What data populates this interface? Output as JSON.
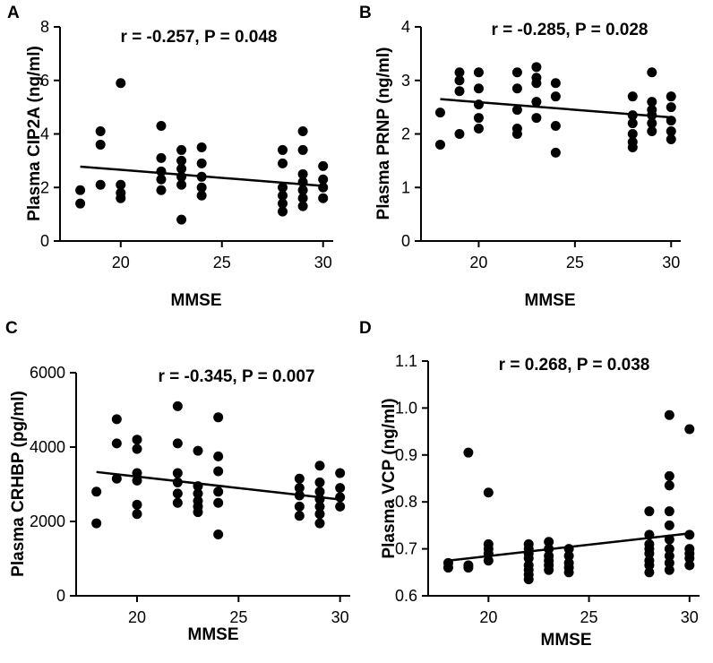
{
  "chart_data": [
    {
      "id": "A",
      "type": "scatter",
      "panel_label": "A",
      "ylabel": "Plasma CIP2A (ng/ml)",
      "xlabel": "MMSE",
      "annotation": "r = -0.257, P = 0.048",
      "xlim": [
        17,
        30.5
      ],
      "ylim": [
        0,
        8
      ],
      "xticks": [
        20,
        25,
        30
      ],
      "yticks": [
        0,
        2,
        4,
        6,
        8
      ],
      "points": [
        [
          18,
          1.9
        ],
        [
          18,
          1.4
        ],
        [
          19,
          4.1
        ],
        [
          19,
          3.6
        ],
        [
          19,
          2.1
        ],
        [
          20,
          5.9
        ],
        [
          20,
          2.1
        ],
        [
          20,
          1.8
        ],
        [
          20,
          1.6
        ],
        [
          22,
          4.3
        ],
        [
          22,
          3.1
        ],
        [
          22,
          2.6
        ],
        [
          22,
          2.3
        ],
        [
          22,
          1.9
        ],
        [
          23,
          3.4
        ],
        [
          23,
          3.0
        ],
        [
          23,
          2.7
        ],
        [
          23,
          2.4
        ],
        [
          23,
          2.1
        ],
        [
          23,
          0.8
        ],
        [
          24,
          3.5
        ],
        [
          24,
          2.9
        ],
        [
          24,
          2.4
        ],
        [
          24,
          2.0
        ],
        [
          24,
          1.7
        ],
        [
          28,
          3.4
        ],
        [
          28,
          2.9
        ],
        [
          28,
          2.0
        ],
        [
          28,
          1.7
        ],
        [
          28,
          1.4
        ],
        [
          28,
          1.1
        ],
        [
          29,
          4.1
        ],
        [
          29,
          3.4
        ],
        [
          29,
          2.5
        ],
        [
          29,
          2.2
        ],
        [
          29,
          1.9
        ],
        [
          29,
          1.6
        ],
        [
          29,
          1.3
        ],
        [
          30,
          2.8
        ],
        [
          30,
          2.3
        ],
        [
          30,
          2.0
        ],
        [
          30,
          1.6
        ]
      ],
      "fit": {
        "x": [
          18,
          30
        ],
        "y": [
          2.78,
          2.06
        ]
      }
    },
    {
      "id": "B",
      "type": "scatter",
      "panel_label": "B",
      "ylabel": "Plasma PRNP (ng/ml)",
      "xlabel": "MMSE",
      "annotation": "r = -0.285, P = 0.028",
      "xlim": [
        17,
        30.5
      ],
      "ylim": [
        0,
        4
      ],
      "xticks": [
        20,
        25,
        30
      ],
      "yticks": [
        0,
        1,
        2,
        3,
        4
      ],
      "points": [
        [
          18,
          2.4
        ],
        [
          18,
          1.8
        ],
        [
          19,
          3.15
        ],
        [
          19,
          3.0
        ],
        [
          19,
          2.8
        ],
        [
          19,
          2.0
        ],
        [
          20,
          3.15
        ],
        [
          20,
          2.85
        ],
        [
          20,
          2.55
        ],
        [
          20,
          2.3
        ],
        [
          20,
          2.1
        ],
        [
          22,
          3.15
        ],
        [
          22,
          2.85
        ],
        [
          22,
          2.45
        ],
        [
          22,
          2.1
        ],
        [
          22,
          2.0
        ],
        [
          23,
          3.25
        ],
        [
          23,
          3.05
        ],
        [
          23,
          2.95
        ],
        [
          23,
          2.6
        ],
        [
          23,
          2.3
        ],
        [
          24,
          2.95
        ],
        [
          24,
          2.7
        ],
        [
          24,
          2.15
        ],
        [
          24,
          1.65
        ],
        [
          28,
          2.7
        ],
        [
          28,
          2.35
        ],
        [
          28,
          2.2
        ],
        [
          28,
          2.0
        ],
        [
          28,
          1.85
        ],
        [
          28,
          1.75
        ],
        [
          29,
          3.15
        ],
        [
          29,
          2.6
        ],
        [
          29,
          2.45
        ],
        [
          29,
          2.35
        ],
        [
          29,
          2.2
        ],
        [
          29,
          2.05
        ],
        [
          30,
          2.7
        ],
        [
          30,
          2.5
        ],
        [
          30,
          2.25
        ],
        [
          30,
          2.05
        ],
        [
          30,
          1.9
        ]
      ],
      "fit": {
        "x": [
          18,
          30
        ],
        "y": [
          2.65,
          2.31
        ]
      }
    },
    {
      "id": "C",
      "type": "scatter",
      "panel_label": "C",
      "ylabel": "Plasma CRHBP (pg/ml)",
      "xlabel": "MMSE",
      "annotation": "r = -0.345, P = 0.007",
      "xlim": [
        17,
        30.5
      ],
      "ylim": [
        0,
        6000
      ],
      "xticks": [
        20,
        25,
        30
      ],
      "yticks": [
        0,
        2000,
        4000,
        6000
      ],
      "points": [
        [
          18,
          2800
        ],
        [
          18,
          1950
        ],
        [
          19,
          4750
        ],
        [
          19,
          4100
        ],
        [
          19,
          3150
        ],
        [
          20,
          4200
        ],
        [
          20,
          3950
        ],
        [
          20,
          3300
        ],
        [
          20,
          3100
        ],
        [
          20,
          2450
        ],
        [
          20,
          2200
        ],
        [
          22,
          5100
        ],
        [
          22,
          4100
        ],
        [
          22,
          3300
        ],
        [
          22,
          3050
        ],
        [
          22,
          2750
        ],
        [
          22,
          2500
        ],
        [
          23,
          3900
        ],
        [
          23,
          2950
        ],
        [
          23,
          2750
        ],
        [
          23,
          2550
        ],
        [
          23,
          2400
        ],
        [
          23,
          2250
        ],
        [
          24,
          4800
        ],
        [
          24,
          3750
        ],
        [
          24,
          3350
        ],
        [
          24,
          2800
        ],
        [
          24,
          2500
        ],
        [
          24,
          1650
        ],
        [
          28,
          3150
        ],
        [
          28,
          2900
        ],
        [
          28,
          2700
        ],
        [
          28,
          2400
        ],
        [
          28,
          2150
        ],
        [
          29,
          3500
        ],
        [
          29,
          3050
        ],
        [
          29,
          2800
        ],
        [
          29,
          2600
        ],
        [
          29,
          2400
        ],
        [
          29,
          2200
        ],
        [
          29,
          1950
        ],
        [
          30,
          3300
        ],
        [
          30,
          2900
        ],
        [
          30,
          2650
        ],
        [
          30,
          2400
        ]
      ],
      "fit": {
        "x": [
          18,
          30
        ],
        "y": [
          3330,
          2590
        ]
      }
    },
    {
      "id": "D",
      "type": "scatter",
      "panel_label": "D",
      "ylabel": "Plasma VCP (ng/ml)",
      "xlabel": "MMSE",
      "annotation": "r = 0.268, P = 0.038",
      "xlim": [
        17,
        30.5
      ],
      "ylim": [
        0.6,
        1.1
      ],
      "xticks": [
        20,
        25,
        30
      ],
      "yticks": [
        "0.6",
        "0.7",
        "0.8",
        "0.9",
        "1.0",
        "1.1"
      ],
      "points": [
        [
          18,
          0.67
        ],
        [
          18,
          0.66
        ],
        [
          19,
          0.905
        ],
        [
          19,
          0.665
        ],
        [
          19,
          0.66
        ],
        [
          20,
          0.82
        ],
        [
          20,
          0.71
        ],
        [
          20,
          0.7
        ],
        [
          20,
          0.69
        ],
        [
          20,
          0.675
        ],
        [
          22,
          0.71
        ],
        [
          22,
          0.7
        ],
        [
          22,
          0.69
        ],
        [
          22,
          0.68
        ],
        [
          22,
          0.665
        ],
        [
          22,
          0.655
        ],
        [
          22,
          0.645
        ],
        [
          22,
          0.635
        ],
        [
          23,
          0.715
        ],
        [
          23,
          0.7
        ],
        [
          23,
          0.685
        ],
        [
          23,
          0.675
        ],
        [
          23,
          0.665
        ],
        [
          23,
          0.655
        ],
        [
          24,
          0.7
        ],
        [
          24,
          0.685
        ],
        [
          24,
          0.67
        ],
        [
          24,
          0.66
        ],
        [
          24,
          0.65
        ],
        [
          28,
          0.78
        ],
        [
          28,
          0.73
        ],
        [
          28,
          0.71
        ],
        [
          28,
          0.7
        ],
        [
          28,
          0.69
        ],
        [
          28,
          0.675
        ],
        [
          28,
          0.665
        ],
        [
          28,
          0.65
        ],
        [
          29,
          0.985
        ],
        [
          29,
          0.855
        ],
        [
          29,
          0.835
        ],
        [
          29,
          0.78
        ],
        [
          29,
          0.75
        ],
        [
          29,
          0.72
        ],
        [
          29,
          0.7
        ],
        [
          29,
          0.685
        ],
        [
          29,
          0.67
        ],
        [
          29,
          0.655
        ],
        [
          30,
          0.955
        ],
        [
          30,
          0.73
        ],
        [
          30,
          0.7
        ],
        [
          30,
          0.69
        ],
        [
          30,
          0.68
        ],
        [
          30,
          0.665
        ]
      ],
      "fit": {
        "x": [
          18,
          30
        ],
        "y": [
          0.675,
          0.733
        ]
      }
    }
  ]
}
